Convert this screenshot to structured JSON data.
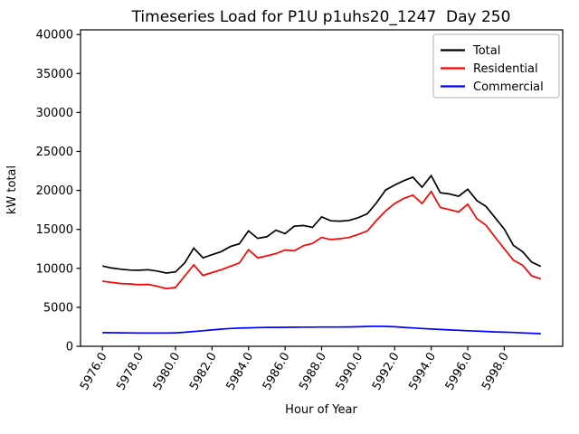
{
  "chart_data": {
    "type": "line",
    "title": "Timeseries Load for P1U p1uhs20_1247  Day 250",
    "xlabel": "Hour of Year",
    "ylabel": "kW total",
    "xlim": [
      5974.8,
      6001.2
    ],
    "ylim": [
      0,
      40600
    ],
    "grid": false,
    "legend_position": "upper right",
    "legend_border_color": "#b0b0b0",
    "axis_color": "#000000",
    "xticks": {
      "values": [
        5976,
        5978,
        5980,
        5982,
        5984,
        5986,
        5988,
        5990,
        5992,
        5994,
        5996,
        5998
      ],
      "labels": [
        "5976.0",
        "5978.0",
        "5980.0",
        "5982.0",
        "5984.0",
        "5986.0",
        "5988.0",
        "5990.0",
        "5992.0",
        "5994.0",
        "5996.0",
        "5998.0"
      ]
    },
    "yticks": {
      "values": [
        0,
        5000,
        10000,
        15000,
        20000,
        25000,
        30000,
        35000,
        40000
      ],
      "labels": [
        "0",
        "5000",
        "10000",
        "15000",
        "20000",
        "25000",
        "30000",
        "35000",
        "40000"
      ]
    },
    "x": [
      5976,
      5976.5,
      5977,
      5977.5,
      5978,
      5978.5,
      5979,
      5979.5,
      5980,
      5980.5,
      5981,
      5981.5,
      5982,
      5982.5,
      5983,
      5983.5,
      5984,
      5984.5,
      5985,
      5985.5,
      5986,
      5986.5,
      5987,
      5987.5,
      5988,
      5988.5,
      5989,
      5989.5,
      5990,
      5990.5,
      5991,
      5991.5,
      5992,
      5992.5,
      5993,
      5993.5,
      5994,
      5994.5,
      5995,
      5995.5,
      5996,
      5996.5,
      5997,
      5997.5,
      5998,
      5998.5,
      5999,
      5999.5,
      6000
    ],
    "series": [
      {
        "name": "Total",
        "color": "#000000",
        "values": [
          10300,
          10050,
          9900,
          9780,
          9750,
          9830,
          9650,
          9400,
          9550,
          10700,
          12600,
          11350,
          11750,
          12150,
          12800,
          13150,
          14800,
          13850,
          14050,
          14900,
          14450,
          15400,
          15500,
          15250,
          16600,
          16100,
          16050,
          16150,
          16500,
          17000,
          18400,
          20050,
          20700,
          21250,
          21700,
          20400,
          21900,
          19700,
          19550,
          19250,
          20150,
          18700,
          17950,
          16500,
          15050,
          12950,
          12150,
          10800,
          10250
        ]
      },
      {
        "name": "Residential",
        "color": "#ff0000",
        "values": [
          8350,
          8200,
          8050,
          8000,
          7900,
          7950,
          7700,
          7400,
          7550,
          9000,
          10450,
          9100,
          9450,
          9820,
          10250,
          10700,
          12400,
          11350,
          11600,
          11900,
          12350,
          12250,
          12900,
          13200,
          13950,
          13700,
          13800,
          13950,
          14350,
          14800,
          16150,
          17350,
          18320,
          18980,
          19400,
          18320,
          19860,
          17820,
          17540,
          17240,
          18240,
          16380,
          15530,
          13990,
          12520,
          11050,
          10400,
          9040,
          8650
        ]
      },
      {
        "name": "Commercial",
        "color": "#0000ff",
        "values": [
          1750,
          1740,
          1730,
          1720,
          1710,
          1700,
          1700,
          1710,
          1730,
          1800,
          1900,
          2000,
          2100,
          2200,
          2280,
          2330,
          2370,
          2400,
          2420,
          2430,
          2440,
          2450,
          2460,
          2465,
          2470,
          2470,
          2475,
          2480,
          2500,
          2550,
          2580,
          2550,
          2500,
          2430,
          2350,
          2280,
          2220,
          2160,
          2100,
          2050,
          2000,
          1950,
          1900,
          1850,
          1810,
          1770,
          1720,
          1670,
          1620
        ]
      }
    ]
  }
}
